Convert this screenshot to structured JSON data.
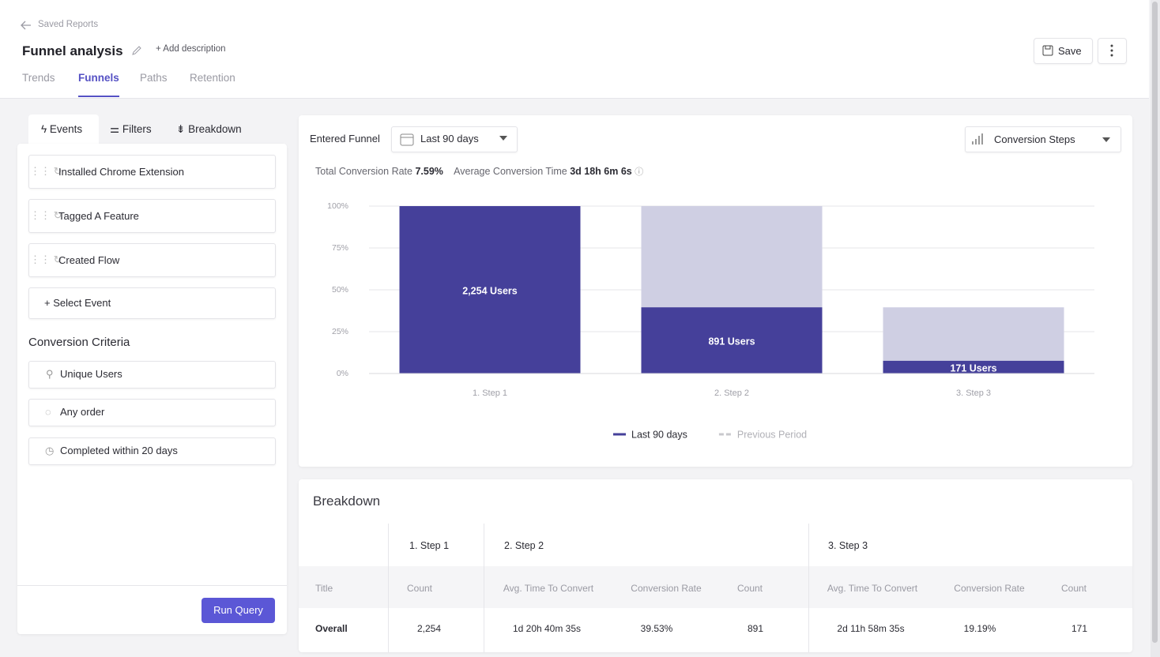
{
  "header": {
    "back": "Saved Reports",
    "title": "Funnel analysis",
    "add_description": "Add description",
    "save": "Save"
  },
  "tabs": [
    "Trends",
    "Funnels",
    "Paths",
    "Retention"
  ],
  "active_tab": 1,
  "sidebar": {
    "tabs": [
      "Events",
      "Filters",
      "Breakdown"
    ],
    "active_tab": 0,
    "events": [
      "Installed Chrome Extension",
      "Tagged A Feature",
      "Created Flow"
    ],
    "select_event": "Select Event",
    "criteria_title": "Conversion Criteria",
    "criteria": [
      "Unique Users",
      "Any order",
      "Completed within 20 days"
    ],
    "run": "Run Query"
  },
  "controls": {
    "entered_funnel": "Entered Funnel",
    "range": "Last 90 days",
    "view": "Conversion Steps"
  },
  "summary": {
    "rate_label": "Total Conversion Rate",
    "rate": "7.59%",
    "time_label": "Average Conversion Time",
    "time": "3d 18h 6m 6s"
  },
  "chart_data": {
    "type": "bar",
    "categories": [
      "1. Step 1",
      "2. Step 2",
      "3. Step 3"
    ],
    "ylim": [
      0,
      100
    ],
    "yticks": [
      {
        "value": 0,
        "label": "0%"
      },
      {
        "value": 25,
        "label": "25%"
      },
      {
        "value": 50,
        "label": "50%"
      },
      {
        "value": 75,
        "label": "75%"
      },
      {
        "value": 100,
        "label": "100%"
      }
    ],
    "grid": true,
    "series": [
      {
        "name": "Last 90 days",
        "color": "#45409a",
        "values": [
          100,
          39.53,
          7.59
        ],
        "bar_labels": [
          "2,254 Users",
          "891 Users",
          "171 Users"
        ]
      },
      {
        "name": "Previous Period",
        "color": "#c8c8cc",
        "dashed": true,
        "values": [
          null,
          null,
          null
        ]
      }
    ],
    "reference": {
      "color": "#cfcfe3",
      "values": [
        null,
        100,
        39.53
      ]
    }
  },
  "breakdown": {
    "title": "Breakdown",
    "steps": [
      "1. Step 1",
      "2. Step 2",
      "3. Step 3"
    ],
    "columns": [
      "Title",
      "Count",
      "Avg. Time To Convert",
      "Conversion Rate",
      "Count",
      "Avg. Time To Convert",
      "Conversion Rate",
      "Count"
    ],
    "rows": [
      [
        "Overall",
        "2,254",
        "1d 20h 40m 35s",
        "39.53%",
        "891",
        "2d 11h 58m 35s",
        "19.19%",
        "171"
      ]
    ]
  }
}
